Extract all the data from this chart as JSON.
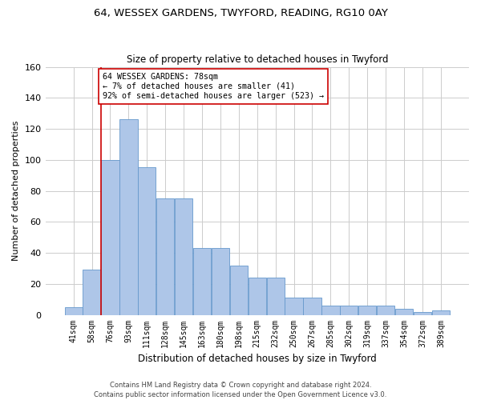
{
  "title_line1": "64, WESSEX GARDENS, TWYFORD, READING, RG10 0AY",
  "title_line2": "Size of property relative to detached houses in Twyford",
  "xlabel": "Distribution of detached houses by size in Twyford",
  "ylabel": "Number of detached properties",
  "categories": [
    "41sqm",
    "58sqm",
    "76sqm",
    "93sqm",
    "111sqm",
    "128sqm",
    "145sqm",
    "163sqm",
    "180sqm",
    "198sqm",
    "215sqm",
    "232sqm",
    "250sqm",
    "267sqm",
    "285sqm",
    "302sqm",
    "319sqm",
    "337sqm",
    "354sqm",
    "372sqm",
    "389sqm"
  ],
  "bar_values": [
    5,
    29,
    100,
    126,
    95,
    75,
    75,
    43,
    43,
    32,
    24,
    24,
    11,
    11,
    6,
    6,
    6,
    6,
    4,
    2,
    3
  ],
  "ylim": [
    0,
    160
  ],
  "yticks": [
    0,
    20,
    40,
    60,
    80,
    100,
    120,
    140,
    160
  ],
  "bar_color": "#aec6e8",
  "bar_edge_color": "#6699cc",
  "vline_color": "#cc0000",
  "annotation_text": "64 WESSEX GARDENS: 78sqm\n← 7% of detached houses are smaller (41)\n92% of semi-detached houses are larger (523) →",
  "annotation_box_color": "#ffffff",
  "annotation_box_edge": "#cc0000",
  "footer_line1": "Contains HM Land Registry data © Crown copyright and database right 2024.",
  "footer_line2": "Contains public sector information licensed under the Open Government Licence v3.0.",
  "background_color": "#ffffff",
  "grid_color": "#cccccc"
}
